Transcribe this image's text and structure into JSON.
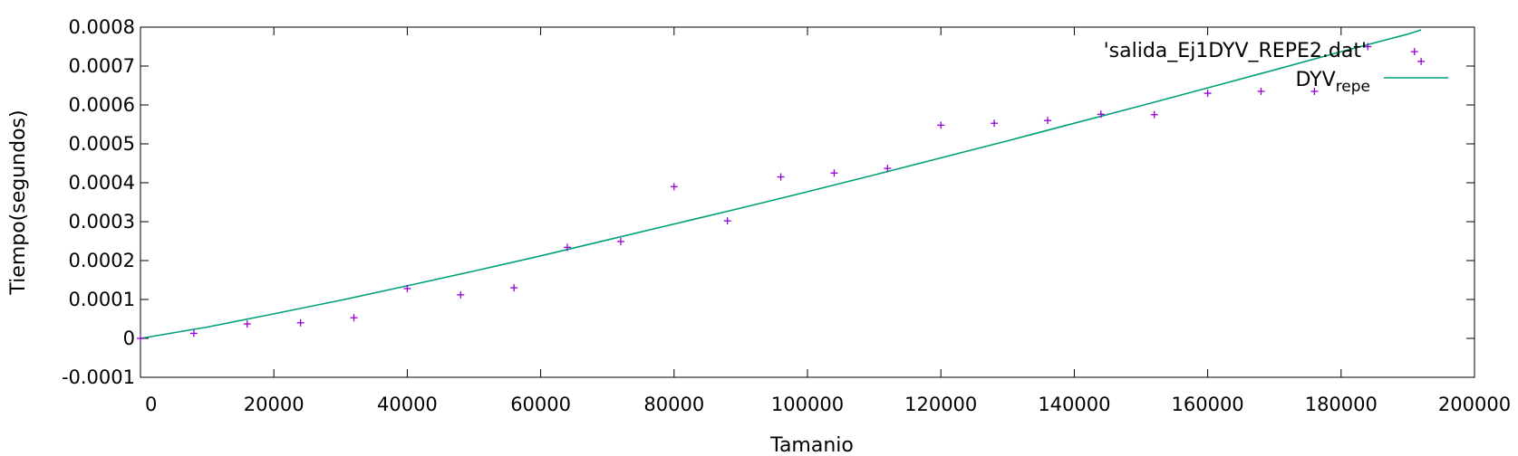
{
  "chart_data": {
    "type": "scatter",
    "xlabel": "Tamanio",
    "ylabel": "Tiempo(segundos)",
    "xlim": [
      0,
      200000
    ],
    "ylim": [
      -0.0001,
      0.0008
    ],
    "x_ticks": [
      {
        "value": 0,
        "label": "0"
      },
      {
        "value": 20000,
        "label": "20000"
      },
      {
        "value": 40000,
        "label": "40000"
      },
      {
        "value": 60000,
        "label": "60000"
      },
      {
        "value": 80000,
        "label": "80000"
      },
      {
        "value": 100000,
        "label": "100000"
      },
      {
        "value": 120000,
        "label": "120000"
      },
      {
        "value": 140000,
        "label": "140000"
      },
      {
        "value": 160000,
        "label": "160000"
      },
      {
        "value": 180000,
        "label": "180000"
      },
      {
        "value": 200000,
        "label": "200000"
      }
    ],
    "y_ticks": [
      {
        "value": -0.0001,
        "label": "-0.0001"
      },
      {
        "value": 0,
        "label": "0"
      },
      {
        "value": 0.0001,
        "label": "0.0001"
      },
      {
        "value": 0.0002,
        "label": "0.0002"
      },
      {
        "value": 0.0003,
        "label": "0.0003"
      },
      {
        "value": 0.0004,
        "label": "0.0004"
      },
      {
        "value": 0.0005,
        "label": "0.0005"
      },
      {
        "value": 0.0006,
        "label": "0.0006"
      },
      {
        "value": 0.0007,
        "label": "0.0007"
      },
      {
        "value": 0.0008,
        "label": "0.0008"
      }
    ],
    "grid": false,
    "legend_position": "top-right",
    "series": [
      {
        "name": "'salida_Ej1DYV_REPE2.dat'",
        "kind": "points",
        "color": "#9400d3",
        "points": [
          [
            0,
            0.0
          ],
          [
            8000,
            1.3e-05
          ],
          [
            16000,
            3.7e-05
          ],
          [
            24000,
            4e-05
          ],
          [
            32000,
            5.3e-05
          ],
          [
            40000,
            0.000128
          ],
          [
            48000,
            0.000112
          ],
          [
            56000,
            0.00013
          ],
          [
            64000,
            0.000234
          ],
          [
            72000,
            0.000249
          ],
          [
            80000,
            0.00039
          ],
          [
            88000,
            0.000302
          ],
          [
            96000,
            0.000415
          ],
          [
            104000,
            0.000425
          ],
          [
            112000,
            0.000437
          ],
          [
            120000,
            0.000548
          ],
          [
            128000,
            0.000553
          ],
          [
            136000,
            0.00056
          ],
          [
            144000,
            0.000576
          ],
          [
            152000,
            0.000575
          ],
          [
            160000,
            0.00063
          ],
          [
            168000,
            0.000635
          ],
          [
            176000,
            0.000635
          ],
          [
            184000,
            0.00075
          ],
          [
            191000,
            0.000737
          ],
          [
            192000,
            0.000712
          ]
        ]
      },
      {
        "name": "DYV",
        "name_subscript": "repe",
        "kind": "line",
        "color": "#00a07a",
        "points": [
          [
            0,
            0.0
          ],
          [
            10000,
            2.9e-05
          ],
          [
            20000,
            6.3e-05
          ],
          [
            30000,
            9.8e-05
          ],
          [
            40000,
            0.000135
          ],
          [
            50000,
            0.000173
          ],
          [
            60000,
            0.000212
          ],
          [
            70000,
            0.000253
          ],
          [
            80000,
            0.000294
          ],
          [
            90000,
            0.000335
          ],
          [
            100000,
            0.000377
          ],
          [
            110000,
            0.00042
          ],
          [
            120000,
            0.000464
          ],
          [
            130000,
            0.000508
          ],
          [
            140000,
            0.000553
          ],
          [
            150000,
            0.000598
          ],
          [
            160000,
            0.000644
          ],
          [
            170000,
            0.00069
          ],
          [
            180000,
            0.000737
          ],
          [
            190000,
            0.000782
          ],
          [
            192000,
            0.000793
          ]
        ]
      }
    ]
  }
}
